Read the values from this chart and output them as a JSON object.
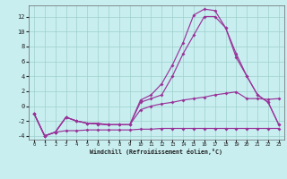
{
  "xlabel": "Windchill (Refroidissement éolien,°C)",
  "background_color": "#c8eef0",
  "grid_color": "#9ed0cc",
  "line_color": "#993399",
  "xlim": [
    -0.5,
    23.5
  ],
  "ylim": [
    -4.5,
    13.5
  ],
  "xticks": [
    0,
    1,
    2,
    3,
    4,
    5,
    6,
    7,
    8,
    9,
    10,
    11,
    12,
    13,
    14,
    15,
    16,
    17,
    18,
    19,
    20,
    21,
    22,
    23
  ],
  "yticks": [
    -4,
    -2,
    0,
    2,
    4,
    6,
    8,
    10,
    12
  ],
  "curves": [
    [
      -1.0,
      -4.0,
      -3.5,
      -3.3,
      -3.3,
      -3.2,
      -3.2,
      -3.2,
      -3.2,
      -3.2,
      -3.1,
      -3.1,
      -3.0,
      -3.0,
      -3.0,
      -3.0,
      -3.0,
      -3.0,
      -3.0,
      -3.0,
      -3.0,
      -3.0,
      -3.0,
      -3.0
    ],
    [
      -1.0,
      -4.0,
      -3.5,
      -1.5,
      -2.0,
      -2.3,
      -2.3,
      -2.5,
      -2.5,
      -2.5,
      -0.5,
      0.0,
      0.3,
      0.5,
      0.8,
      1.0,
      1.2,
      1.5,
      1.7,
      1.9,
      1.0,
      1.0,
      0.9,
      1.0
    ],
    [
      -1.0,
      -4.0,
      -3.5,
      -1.5,
      -2.0,
      -2.3,
      -2.4,
      -2.5,
      -2.5,
      -2.5,
      0.5,
      1.0,
      1.5,
      4.0,
      7.0,
      9.5,
      12.0,
      12.0,
      10.5,
      6.5,
      4.0,
      1.5,
      0.5,
      -2.5
    ],
    [
      -1.0,
      -4.0,
      -3.5,
      -1.5,
      -2.0,
      -2.3,
      -2.4,
      -2.5,
      -2.5,
      -2.5,
      0.8,
      1.5,
      3.0,
      5.5,
      8.5,
      12.2,
      13.0,
      12.8,
      10.5,
      7.0,
      4.0,
      1.5,
      0.5,
      -2.5
    ]
  ]
}
